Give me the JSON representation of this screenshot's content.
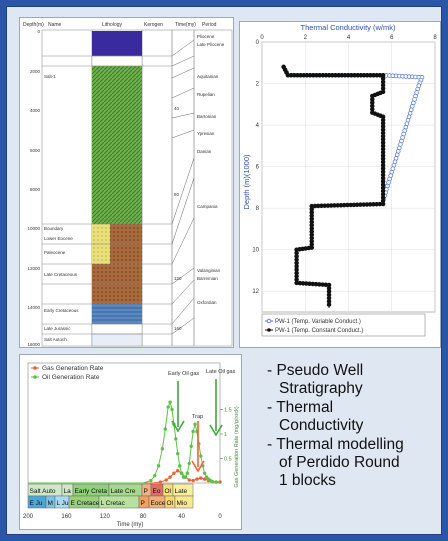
{
  "stratigraphy": {
    "headers": [
      "Depth(m)",
      "Name",
      "Lithology",
      "Kerogen",
      "Time(my)",
      "Period"
    ],
    "depth_ticks": [
      "0",
      "2000",
      "4000",
      "6000",
      "8000",
      "10000",
      "12000",
      "14000",
      "16000"
    ],
    "units": [
      "Salt-1",
      "Boundary",
      "Lower Eocene",
      "Paleocene",
      "Late Cretaceous",
      "Early Cretaceous",
      "Late Jurassic",
      "Salt Autoch."
    ],
    "time_ticks": [
      "40",
      "80",
      "120",
      "160"
    ],
    "periods": [
      "Pliocene",
      "Late Pliocene",
      "Aquitanian",
      "Rupelian",
      "Bartonian",
      "Ypresian",
      "Danian",
      "Campania",
      "Valanginian",
      "Barremian",
      "Oxfordian"
    ]
  },
  "conductivity": {
    "title": "Thermal Conductivity (w/mk)",
    "ylabel": "Depth (m)(1000)",
    "legend": [
      "PW-1 (Temp. Variable Conduct.)",
      "PW-1 (Temp. Constant Conduct.)"
    ],
    "colors": {
      "variable": "#4a6fd8",
      "constant": "#111111"
    }
  },
  "generation": {
    "legend": [
      "Gas Generation Rate",
      "Oil Generation Rate"
    ],
    "ylabel": "Gas Generation Rate (mg/g/rock)",
    "xlabel": "Time (my)",
    "annotations": [
      "Early Oil gas",
      "Trap",
      "Late Oil gas"
    ],
    "strat_row1": [
      "Salt Auto",
      "La",
      "Early Creta",
      "Late Cre",
      "P",
      "Eo",
      "Ol",
      "Late"
    ],
    "strat_row2": [
      "E Ju",
      "M",
      "L Ju",
      "E Cretaceo",
      "L Cretac",
      "P",
      "Eoce",
      "Ol",
      "Mio"
    ],
    "colors": {
      "gas": "#ee6030",
      "oil": "#5cc048"
    }
  },
  "chart_data": [
    {
      "type": "line",
      "title": "Thermal Conductivity (w/mk)",
      "xlabel": "",
      "ylabel": "Depth (m)(1000)",
      "xlim": [
        0,
        8
      ],
      "ylim": [
        0,
        13
      ],
      "xticks": [
        "0",
        "2",
        "4",
        "6",
        "8"
      ],
      "yticks": [
        "0",
        "2",
        "4",
        "6",
        "8",
        "10",
        "12"
      ],
      "legend_position": "bottom-left",
      "series": [
        {
          "name": "PW-1 (Temp. Variable Conduct.)",
          "x": [
            1.0,
            1.2,
            5.6,
            7.4,
            7.25,
            7.1,
            6.95,
            6.8,
            6.65,
            6.5,
            6.35,
            6.2,
            6.05,
            5.9,
            5.75,
            5.6
          ],
          "y": [
            1.2,
            1.6,
            1.6,
            1.7,
            2.1,
            2.6,
            3.1,
            3.6,
            4.1,
            4.6,
            5.1,
            5.6,
            6.1,
            6.6,
            7.1,
            7.7
          ]
        },
        {
          "name": "PW-1 (Temp. Constant Conduct.)",
          "x": [
            1.0,
            1.2,
            5.6,
            5.6,
            5.1,
            5.1,
            5.6,
            5.6,
            2.3,
            2.3,
            1.6,
            1.6,
            3.1,
            3.1
          ],
          "y": [
            1.2,
            1.6,
            1.6,
            2.4,
            2.6,
            3.4,
            3.6,
            7.8,
            7.9,
            9.9,
            10.0,
            11.6,
            11.7,
            12.8
          ]
        }
      ]
    },
    {
      "type": "line",
      "title": "",
      "xlabel": "Time (my)",
      "ylabel": "Gas Generation Rate (mg/g/rock)",
      "xlim": [
        200,
        0
      ],
      "ylim": [
        0,
        2
      ],
      "xticks": [
        "200",
        "160",
        "120",
        "80",
        "40",
        "0"
      ],
      "yticks": [
        "0.5",
        "1",
        "1.5"
      ],
      "legend_position": "top-left",
      "series": [
        {
          "name": "Gas Generation Rate",
          "x": [
            200,
            70,
            62,
            56,
            52,
            48,
            44,
            40,
            36,
            32,
            28,
            24,
            20,
            16,
            12,
            8,
            4,
            0
          ],
          "y": [
            0,
            0,
            0.02,
            0.06,
            0.12,
            0.2,
            0.25,
            0.2,
            0.12,
            0.06,
            0.05,
            0.08,
            0.1,
            0.08,
            0.05,
            0.03,
            0.02,
            0.02
          ]
        },
        {
          "name": "Oil Generation Rate",
          "x": [
            200,
            80,
            72,
            68,
            64,
            60,
            57,
            54,
            52,
            50,
            48,
            46,
            44,
            42,
            40,
            38,
            36,
            34,
            32,
            30,
            28,
            26,
            24,
            22,
            20,
            18,
            16,
            14,
            12,
            10,
            8,
            4,
            0
          ],
          "y": [
            0,
            0,
            0.05,
            0.15,
            0.35,
            0.7,
            1.1,
            1.55,
            1.65,
            1.5,
            1.2,
            0.9,
            0.6,
            0.35,
            0.2,
            0.12,
            0.12,
            0.2,
            0.4,
            0.75,
            1.05,
            1.2,
            1.05,
            0.8,
            0.55,
            0.35,
            0.2,
            0.12,
            0.08,
            0.05,
            0.03,
            0.02,
            0.01
          ]
        }
      ]
    }
  ],
  "bullets": [
    {
      "lines": [
        "- Pseudo Well",
        "Stratigraphy"
      ]
    },
    {
      "lines": [
        "- Thermal",
        "Conductivity"
      ]
    },
    {
      "lines": [
        "- Thermal modelling",
        "of Perdido Round",
        "1 blocks"
      ]
    }
  ]
}
